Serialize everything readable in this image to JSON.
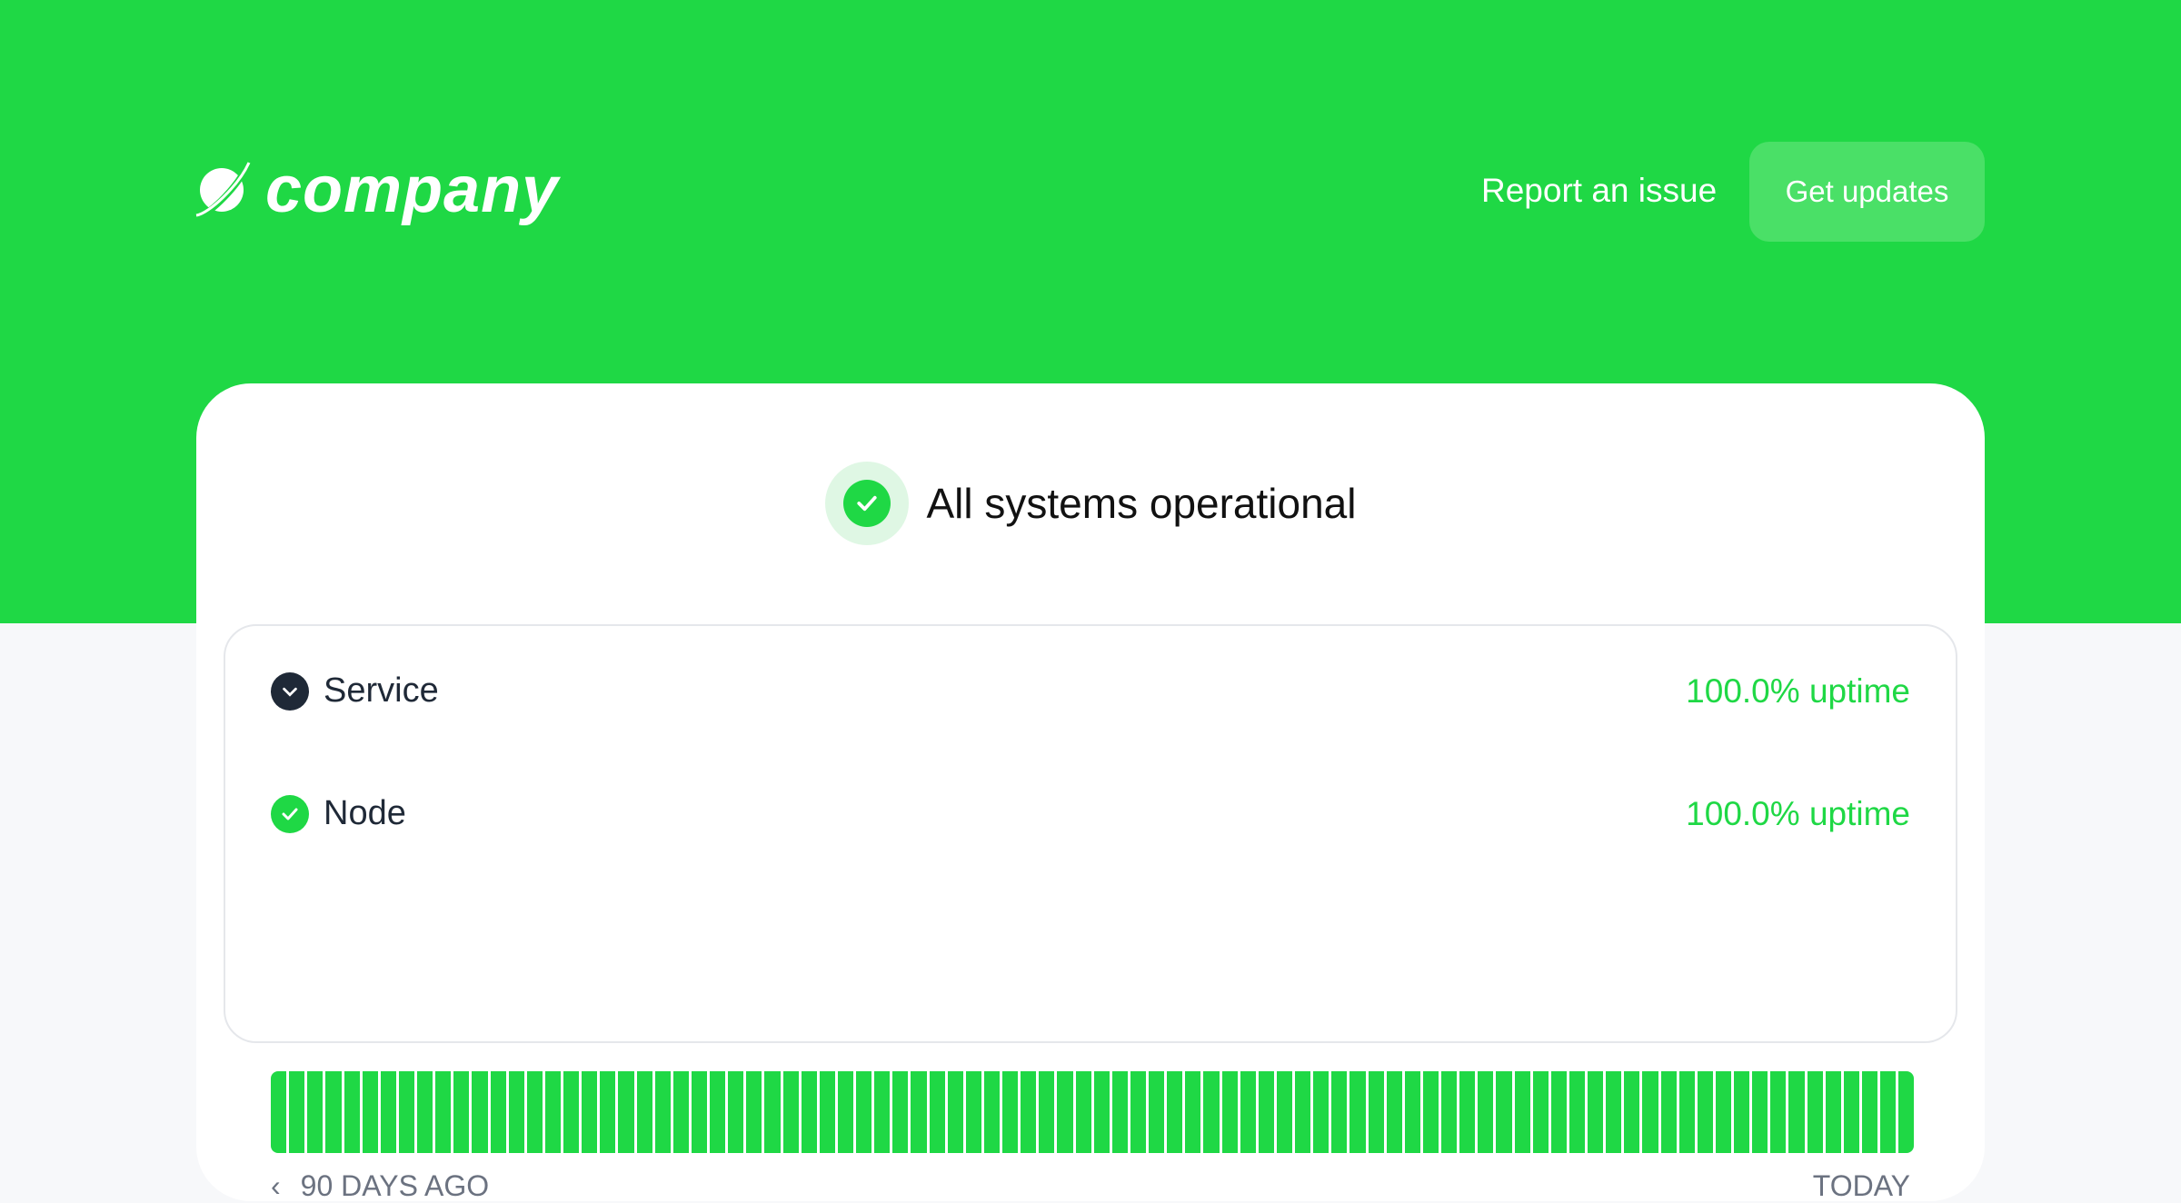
{
  "header": {
    "logo_text": "company",
    "report_label": "Report an issue",
    "updates_label": "Get updates",
    "accent": "#1fd845"
  },
  "status": {
    "icon": "check-circle-icon",
    "text": "All systems operational"
  },
  "components": [
    {
      "name": "Service",
      "icon": "chevron-down-icon",
      "uptime": "100.0% uptime"
    },
    {
      "name": "Node",
      "icon": "check-circle-icon",
      "uptime": "100.0% uptime",
      "days": 90,
      "day_status": "operational"
    }
  ],
  "timeline": {
    "start_label": "90 DAYS AGO",
    "end_label": "TODAY"
  }
}
